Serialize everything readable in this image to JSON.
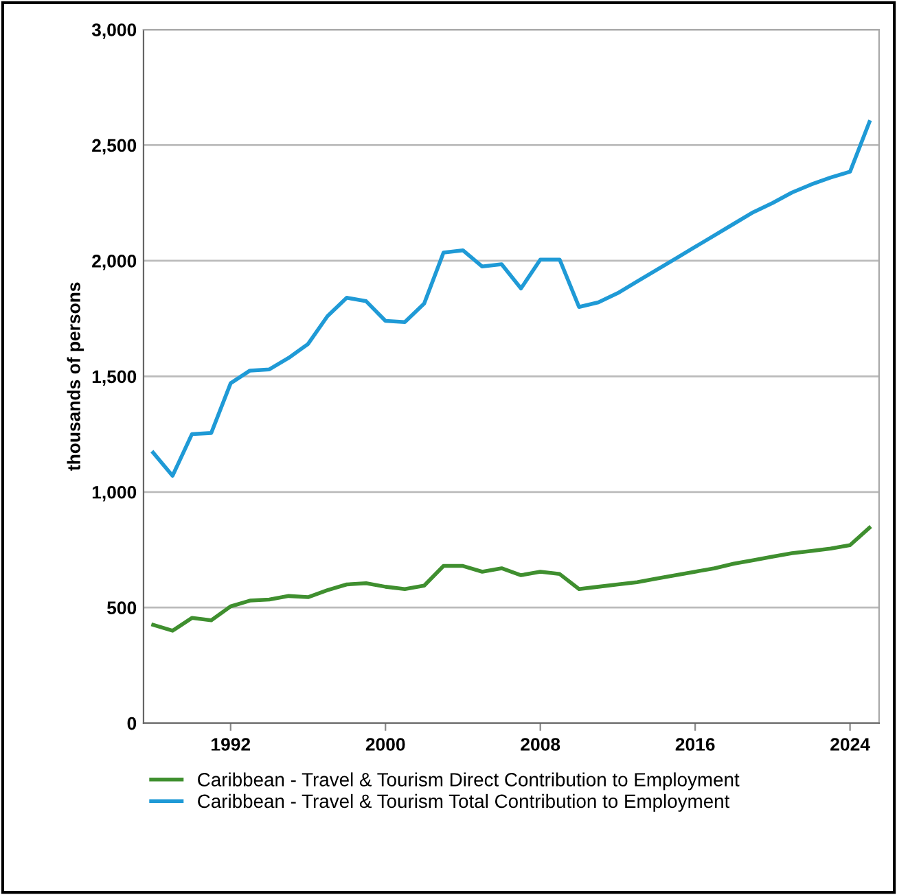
{
  "chart_data": {
    "type": "line",
    "ylabel": "thousands of persons",
    "x": [
      1988,
      1989,
      1990,
      1991,
      1992,
      1993,
      1994,
      1995,
      1996,
      1997,
      1998,
      1999,
      2000,
      2001,
      2002,
      2003,
      2004,
      2005,
      2006,
      2007,
      2008,
      2009,
      2010,
      2011,
      2012,
      2013,
      2014,
      2015,
      2016,
      2017,
      2018,
      2019,
      2020,
      2021,
      2022,
      2023,
      2024,
      2025
    ],
    "series": [
      {
        "name": "Caribbean - Travel & Tourism Direct Contribution to Employment",
        "color": "#3f8f2f",
        "values": [
          425,
          400,
          455,
          445,
          505,
          530,
          535,
          550,
          545,
          575,
          600,
          605,
          590,
          580,
          595,
          680,
          680,
          655,
          670,
          640,
          655,
          645,
          580,
          590,
          600,
          610,
          625,
          640,
          655,
          670,
          690,
          705,
          720,
          735,
          745,
          755,
          770,
          845
        ]
      },
      {
        "name": "Caribbean - Travel & Tourism Total Contribution to Employment",
        "color": "#1f9ad6",
        "values": [
          1170,
          1070,
          1250,
          1255,
          1470,
          1525,
          1530,
          1580,
          1640,
          1760,
          1840,
          1825,
          1740,
          1735,
          1815,
          2035,
          2045,
          1975,
          1985,
          1880,
          2005,
          2005,
          1800,
          1820,
          1860,
          1910,
          1960,
          2010,
          2060,
          2110,
          2160,
          2210,
          2250,
          2295,
          2330,
          2360,
          2385,
          2600
        ]
      }
    ],
    "xlim": [
      1987.5,
      2025.5
    ],
    "xticks": [
      1992,
      2000,
      2008,
      2016,
      2024
    ],
    "ylim": [
      0,
      3000
    ],
    "yticks": [
      {
        "value": 0,
        "label": "0"
      },
      {
        "value": 500,
        "label": "500"
      },
      {
        "value": 1000,
        "label": "1,000"
      },
      {
        "value": 1500,
        "label": "1,500"
      },
      {
        "value": 2000,
        "label": "2,000"
      },
      {
        "value": 2500,
        "label": "2,500"
      },
      {
        "value": 3000,
        "label": "3,000"
      }
    ],
    "grid": "y",
    "legend": "bottom",
    "marker": "none",
    "line_style": "solid"
  }
}
